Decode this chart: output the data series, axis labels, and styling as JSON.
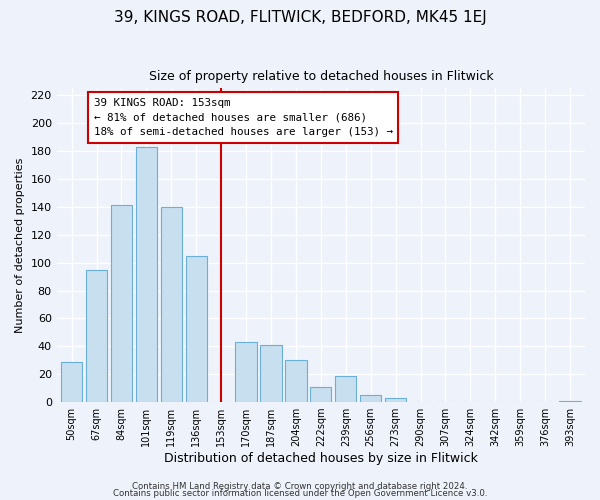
{
  "title": "39, KINGS ROAD, FLITWICK, BEDFORD, MK45 1EJ",
  "subtitle": "Size of property relative to detached houses in Flitwick",
  "xlabel": "Distribution of detached houses by size in Flitwick",
  "ylabel": "Number of detached properties",
  "footnote1": "Contains HM Land Registry data © Crown copyright and database right 2024.",
  "footnote2": "Contains public sector information licensed under the Open Government Licence v3.0.",
  "bar_labels": [
    "50sqm",
    "67sqm",
    "84sqm",
    "101sqm",
    "119sqm",
    "136sqm",
    "153sqm",
    "170sqm",
    "187sqm",
    "204sqm",
    "222sqm",
    "239sqm",
    "256sqm",
    "273sqm",
    "290sqm",
    "307sqm",
    "324sqm",
    "342sqm",
    "359sqm",
    "376sqm",
    "393sqm"
  ],
  "bar_values": [
    29,
    95,
    141,
    183,
    140,
    105,
    0,
    43,
    41,
    30,
    11,
    19,
    5,
    3,
    0,
    0,
    0,
    0,
    0,
    0,
    1
  ],
  "bar_color": "#c8dff0",
  "bar_edge_color": "#6aafd6",
  "vline_x_index": 6,
  "vline_color": "#cc0000",
  "annotation_title": "39 KINGS ROAD: 153sqm",
  "annotation_line1": "← 81% of detached houses are smaller (686)",
  "annotation_line2": "18% of semi-detached houses are larger (153) →",
  "ylim": [
    0,
    225
  ],
  "yticks": [
    0,
    20,
    40,
    60,
    80,
    100,
    120,
    140,
    160,
    180,
    200,
    220
  ],
  "bg_color": "#eef2fa",
  "plot_bg_color": "#eef2fa",
  "grid_color": "#ffffff"
}
